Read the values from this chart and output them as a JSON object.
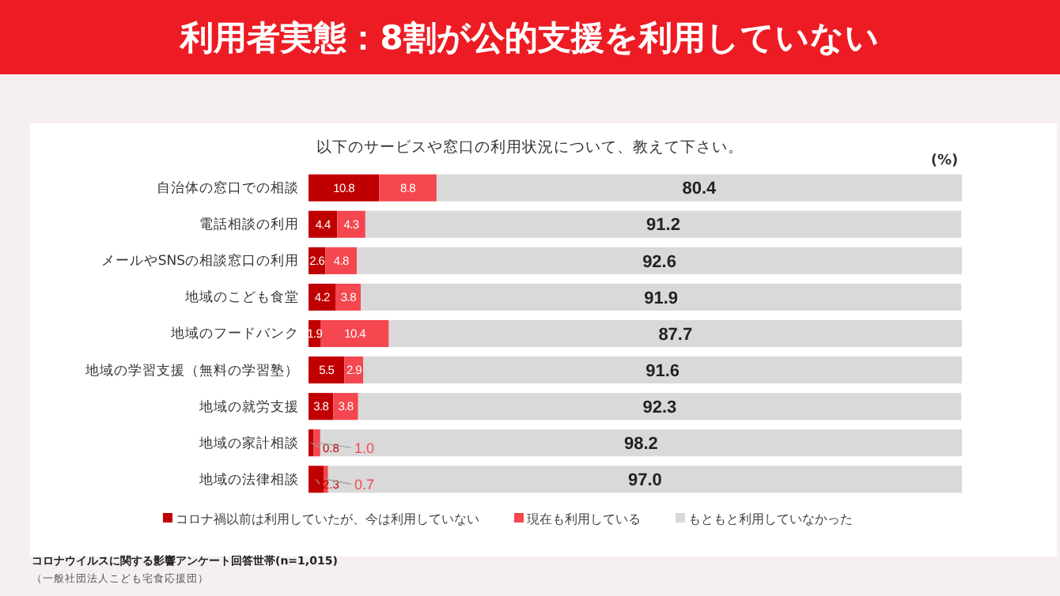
{
  "chart_data": {
    "type": "bar",
    "orientation": "horizontal",
    "stacked": true,
    "title": "利用者実態：8割が公的支援を利用していない",
    "subtitle": "以下のサービスや窓口の利用状況について、教えて下さい。",
    "categories": [
      "自治体の窓口での相談",
      "電話相談の利用",
      "メールやSNSの相談窓口の利用",
      "地域のこども食堂",
      "地域のフードバンク",
      "地域の学習支援（無料の学習塾）",
      "地域の就労支援",
      "地域の家計相談",
      "地域の法律相談"
    ],
    "series": [
      {
        "name": "コロナ禍以前は利用していたが、今は利用していない",
        "color": "#c00000",
        "values": [
          10.8,
          4.4,
          2.6,
          4.2,
          1.9,
          5.5,
          3.8,
          0.8,
          2.3
        ],
        "value_labels": [
          "10.8",
          "4.4",
          "2.6",
          "4.2",
          "1.9",
          "5.5",
          "3.8",
          "0.8",
          "2.3"
        ]
      },
      {
        "name": "現在も利用している",
        "color": "#f4474f",
        "values": [
          8.8,
          4.3,
          4.8,
          3.8,
          10.4,
          2.9,
          3.8,
          1.0,
          0.7
        ],
        "value_labels": [
          "8.8",
          "4.3",
          "4.8",
          "3.8",
          "10.4",
          "2.9",
          "3.8",
          "1.0",
          "0.7"
        ]
      },
      {
        "name": "もともと利用していなかった",
        "color": "#d9d9d9",
        "values": [
          80.4,
          91.2,
          92.6,
          91.9,
          87.7,
          91.6,
          92.3,
          98.2,
          97.0
        ],
        "value_labels": [
          "80.4",
          "91.2",
          "92.6",
          "91.9",
          "87.7",
          "91.6",
          "92.3",
          "98.2",
          "97.0"
        ]
      }
    ],
    "xlim": [
      0,
      100
    ],
    "tick_labels": "x",
    "legend": "bottom",
    "annotations": [
      "(%)",
      "コロナウイルスに関する影響アンケート回答世帯(n=1,015)",
      "（一般社団法人こども宅食応援団）"
    ]
  }
}
